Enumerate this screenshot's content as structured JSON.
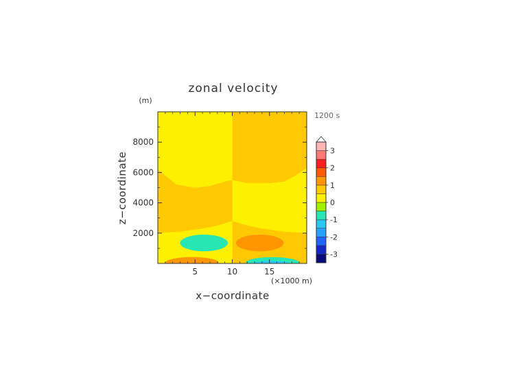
{
  "chart_data": {
    "type": "heatmap",
    "title": "zonal velocity",
    "ylabel": "z−coordinate",
    "y_unit": "(m)",
    "xlabel": "x−coordinate",
    "x_unit": "(×1000 m)",
    "time_label": "1200 s",
    "xlim": [
      0,
      20
    ],
    "ylim": [
      0,
      10000
    ],
    "x_ticks": [
      {
        "value": 5,
        "label": "5"
      },
      {
        "value": 10,
        "label": "10"
      },
      {
        "value": 15,
        "label": "15"
      }
    ],
    "y_ticks": [
      {
        "value": 2000,
        "label": "2000"
      },
      {
        "value": 4000,
        "label": "4000"
      },
      {
        "value": 6000,
        "label": "6000"
      },
      {
        "value": 8000,
        "label": "8000"
      }
    ],
    "colorbar": {
      "levels": [
        -3.5,
        -3,
        -2.5,
        -2,
        -1.5,
        -1,
        -0.5,
        0,
        0.5,
        1,
        1.5,
        2,
        2.5,
        3,
        3.5
      ],
      "colors": [
        "#0a0a78",
        "#1428c8",
        "#1e64ff",
        "#28a0ff",
        "#28c8f0",
        "#28e6b4",
        "#a0f000",
        "#fff000",
        "#ffc800",
        "#ff9600",
        "#ff5a00",
        "#ff1e1e",
        "#ff7878",
        "#ffb4b4"
      ],
      "tick_labels": [
        "-3",
        "-2",
        "-1",
        "0",
        "1",
        "2",
        "3"
      ],
      "tick_values": [
        -3,
        -2,
        -1,
        0,
        1,
        2,
        3
      ],
      "extend": "max"
    },
    "regions": [
      {
        "x": [
          0,
          10
        ],
        "y": [
          0,
          10000
        ],
        "value": 0.25
      },
      {
        "x": [
          10,
          20
        ],
        "y": [
          0,
          10000
        ],
        "value": 0.75
      },
      {
        "shape": "polygon",
        "points": [
          [
            0,
            6200
          ],
          [
            1,
            5800
          ],
          [
            2.5,
            5200
          ],
          [
            5,
            5000
          ],
          [
            7,
            5100
          ],
          [
            9,
            5400
          ],
          [
            10,
            5500
          ],
          [
            10,
            2800
          ],
          [
            8,
            2500
          ],
          [
            6,
            2300
          ],
          [
            3,
            2100
          ],
          [
            0,
            2000
          ]
        ],
        "value": 0.75
      },
      {
        "shape": "polygon",
        "points": [
          [
            10,
            5500
          ],
          [
            12,
            5300
          ],
          [
            15,
            5300
          ],
          [
            17,
            5400
          ],
          [
            18.5,
            5800
          ],
          [
            20,
            6300
          ],
          [
            20,
            2000
          ],
          [
            17,
            2100
          ],
          [
            14,
            2300
          ],
          [
            12,
            2500
          ],
          [
            10,
            2800
          ]
        ],
        "value": 0.25
      },
      {
        "shape": "ellipse",
        "center": [
          6.2,
          1350
        ],
        "radius": [
          3.2,
          550
        ],
        "value": -0.75
      },
      {
        "shape": "ellipse",
        "center": [
          13.7,
          1350
        ],
        "radius": [
          3.2,
          550
        ],
        "value": 1.25
      },
      {
        "shape": "ellipse",
        "center": [
          4.6,
          40
        ],
        "radius": [
          3.6,
          380
        ],
        "value": 1.25
      },
      {
        "shape": "ellipse",
        "center": [
          15.4,
          40
        ],
        "radius": [
          3.6,
          380
        ],
        "value": -0.75
      },
      {
        "shape": "ellipse",
        "center": [
          15.2,
          0
        ],
        "radius": [
          2.5,
          170
        ],
        "value": -1.25
      }
    ]
  }
}
